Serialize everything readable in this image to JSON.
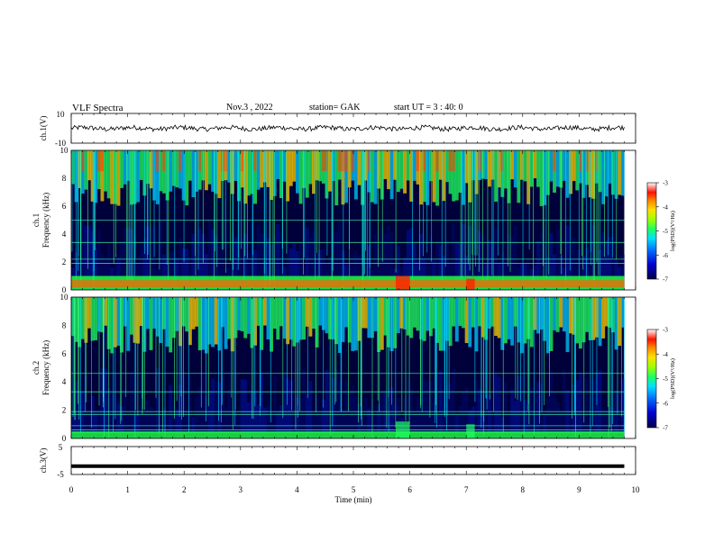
{
  "header": {
    "title": "VLF Spectra",
    "date": "Nov.3 , 2022",
    "station": "station= GAK",
    "start": "start UT = 3 : 40: 0"
  },
  "colors": {
    "background": "#ffffff",
    "spectrogram_base": "#000040",
    "colormap": [
      "#00004a",
      "#0000c0",
      "#0060ff",
      "#00d0ff",
      "#20ff40",
      "#c8ff00",
      "#ffd000",
      "#ff3000",
      "#ffffff"
    ]
  },
  "chart_data": [
    {
      "id": "ch1-waveform",
      "type": "line",
      "ylabel": "ch.1(V)",
      "ylim": [
        -10,
        10
      ],
      "yticks": [
        "10",
        "-10"
      ],
      "xlim": [
        0,
        10
      ],
      "description_values": {
        "mean": 0,
        "amplitude_approx": 2
      }
    },
    {
      "id": "ch1-spectrogram",
      "type": "heatmap",
      "ylabel": [
        "ch.1",
        "Frequency (kHz)"
      ],
      "ylim": [
        0,
        10
      ],
      "yticks": [
        "0",
        "2",
        "4",
        "6",
        "8",
        "10"
      ],
      "xlim": [
        0,
        10
      ],
      "colorbar": {
        "label": "log(PSD)(V²/Hz)",
        "range": [
          -7,
          -3
        ],
        "ticks": [
          "-3",
          "-4",
          "-5",
          "-6",
          "-7"
        ]
      },
      "data_end_min": 9.8
    },
    {
      "id": "ch2-spectrogram",
      "type": "heatmap",
      "ylabel": [
        "ch.2",
        "Frequency (kHz)"
      ],
      "ylim": [
        0,
        10
      ],
      "yticks": [
        "0",
        "2",
        "4",
        "6",
        "8",
        "10"
      ],
      "xlim": [
        0,
        10
      ],
      "colorbar": {
        "label": "log(PSD)(V²/Hz)",
        "range": [
          -7,
          -3
        ],
        "ticks": [
          "-3",
          "-4",
          "-5",
          "-6",
          "-7"
        ]
      },
      "data_end_min": 9.8
    },
    {
      "id": "ch3-waveform",
      "type": "line",
      "ylabel": "ch.3(V)",
      "ylim": [
        -5,
        5
      ],
      "yticks": [
        "5",
        "-5"
      ],
      "xlim": [
        0,
        10
      ],
      "values_constant": -2,
      "xlabel": "Time (min)",
      "xticks": [
        "0",
        "1",
        "2",
        "3",
        "4",
        "5",
        "6",
        "7",
        "8",
        "9",
        "10"
      ]
    }
  ]
}
